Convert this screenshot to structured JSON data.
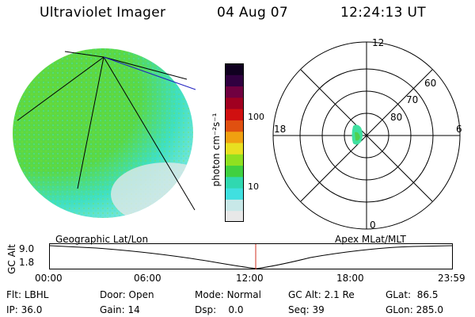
{
  "header": {
    "instrument": "Ultraviolet Imager",
    "date": "04 Aug 07",
    "time": "12:24:13 UT"
  },
  "colorbar": {
    "unit_label": "photon cm⁻²s⁻¹",
    "ticks": [
      "100",
      "10"
    ],
    "colors": [
      "#e8e8e8",
      "#c8e8e8",
      "#40e0e0",
      "#30d8b0",
      "#40d040",
      "#90e020",
      "#e8e020",
      "#f0a010",
      "#e05010",
      "#d01010",
      "#a00020",
      "#700040",
      "#300040",
      "#100020"
    ]
  },
  "polar_plot": {
    "hour_labels": [
      "12",
      "18",
      "6",
      "0"
    ],
    "lat_labels": [
      "60",
      "70",
      "80"
    ],
    "auroral_color": "#40e0a0"
  },
  "timeline": {
    "left_label": "Geographic Lat/Lon",
    "right_label": "Apex MLat/MLT",
    "y_axis_label": "GC Alt",
    "y_ticks": [
      "9.0",
      "1.8"
    ],
    "x_ticks": [
      "00:00",
      "06:00",
      "12:00",
      "18:00",
      "23:59"
    ],
    "marker_color": "#d03020"
  },
  "info": {
    "row1": [
      {
        "key": "Flt:",
        "value": "LBHL"
      },
      {
        "key": "Door:",
        "value": "Open"
      },
      {
        "key": "Mode:",
        "value": "Normal"
      },
      {
        "key": "GC Alt:",
        "value": "2.1 Re"
      },
      {
        "key": "GLat:",
        "value": "86.5"
      }
    ],
    "row2": [
      {
        "key": "IP:",
        "value": "36.0"
      },
      {
        "key": "Gain:",
        "value": "14"
      },
      {
        "key": "Dsp:",
        "value": "0.0"
      },
      {
        "key": "Seq:",
        "value": "39"
      },
      {
        "key": "GLon:",
        "value": "285.0"
      }
    ]
  }
}
